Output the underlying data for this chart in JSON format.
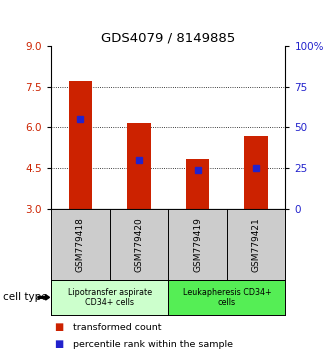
{
  "title": "GDS4079 / 8149885",
  "samples": [
    "GSM779418",
    "GSM779420",
    "GSM779419",
    "GSM779421"
  ],
  "bar_bottom": 3.0,
  "bar_tops": [
    7.7,
    6.15,
    4.85,
    5.7
  ],
  "percentile_values": [
    6.3,
    4.8,
    4.45,
    4.52
  ],
  "ylim": [
    3.0,
    9.0
  ],
  "yticks_left": [
    3,
    4.5,
    6,
    7.5,
    9
  ],
  "yticks_right": [
    0,
    25,
    50,
    75,
    100
  ],
  "bar_color": "#cc2200",
  "percentile_color": "#2222cc",
  "cell_type_groups": [
    {
      "label": "Lipotransfer aspirate\nCD34+ cells",
      "color": "#ccffcc",
      "start": 0,
      "end": 2
    },
    {
      "label": "Leukapheresis CD34+\ncells",
      "color": "#55ee55",
      "start": 2,
      "end": 4
    }
  ],
  "cell_type_label": "cell type",
  "legend_items": [
    {
      "color": "#cc2200",
      "label": "transformed count"
    },
    {
      "color": "#2222cc",
      "label": "percentile rank within the sample"
    }
  ],
  "background_color": "#ffffff",
  "tick_label_color_left": "#cc2200",
  "tick_label_color_right": "#2222cc",
  "bar_width": 0.4,
  "sample_label_bg": "#cccccc"
}
